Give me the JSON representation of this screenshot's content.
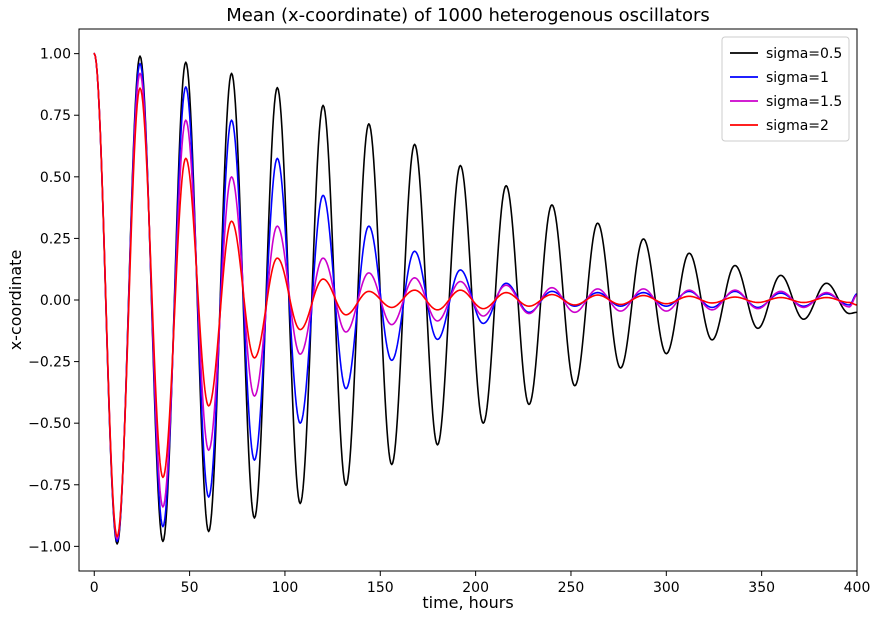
{
  "chart_data": {
    "type": "line",
    "title": "Mean (x-coordinate) of 1000 heterogenous oscillators",
    "xlabel": "time, hours",
    "ylabel": "x-coordinate",
    "xlim": [
      -8,
      400
    ],
    "ylim": [
      -1.1,
      1.1
    ],
    "xticks": [
      0,
      50,
      100,
      150,
      200,
      250,
      300,
      350,
      400
    ],
    "xtick_labels": [
      "0",
      "50",
      "100",
      "150",
      "200",
      "250",
      "300",
      "350",
      "400"
    ],
    "yticks": [
      -1.0,
      -0.75,
      -0.5,
      -0.25,
      0.0,
      0.25,
      0.5,
      0.75,
      1.0
    ],
    "ytick_labels": [
      "−1.00",
      "−0.75",
      "−0.50",
      "−0.25",
      "0.00",
      "0.25",
      "0.50",
      "0.75",
      "1.00"
    ],
    "grid": false,
    "legend_position": "top-right",
    "series": [
      {
        "name": "sigma=0.5",
        "color": "#000000",
        "sigma": 0.5,
        "points": [
          [
            0,
            1.0
          ],
          [
            12,
            -0.99
          ],
          [
            24,
            0.99
          ],
          [
            36,
            -0.98
          ],
          [
            48,
            0.965
          ],
          [
            60,
            -0.94
          ],
          [
            72,
            0.92
          ],
          [
            84,
            -0.885
          ],
          [
            96,
            0.862
          ],
          [
            108,
            -0.826
          ],
          [
            120,
            0.79
          ],
          [
            132,
            -0.752
          ],
          [
            144,
            0.715
          ],
          [
            156,
            -0.668
          ],
          [
            168,
            0.632
          ],
          [
            180,
            -0.588
          ],
          [
            192,
            0.546
          ],
          [
            204,
            -0.5
          ],
          [
            216,
            0.464
          ],
          [
            228,
            -0.424
          ],
          [
            240,
            0.386
          ],
          [
            252,
            -0.348
          ],
          [
            264,
            0.312
          ],
          [
            276,
            -0.276
          ],
          [
            288,
            0.248
          ],
          [
            300,
            -0.218
          ],
          [
            312,
            0.19
          ],
          [
            324,
            -0.162
          ],
          [
            336,
            0.14
          ],
          [
            348,
            -0.115
          ],
          [
            360,
            0.1
          ],
          [
            372,
            -0.078
          ],
          [
            384,
            0.068
          ],
          [
            396,
            -0.055
          ],
          [
            400,
            -0.05
          ]
        ]
      },
      {
        "name": "sigma=1",
        "color": "#0000ff",
        "sigma": 1,
        "points": [
          [
            0,
            1.0
          ],
          [
            12,
            -0.98
          ],
          [
            24,
            0.96
          ],
          [
            36,
            -0.92
          ],
          [
            48,
            0.865
          ],
          [
            60,
            -0.8
          ],
          [
            72,
            0.73
          ],
          [
            84,
            -0.65
          ],
          [
            96,
            0.575
          ],
          [
            108,
            -0.5
          ],
          [
            120,
            0.425
          ],
          [
            132,
            -0.36
          ],
          [
            144,
            0.3
          ],
          [
            156,
            -0.245
          ],
          [
            168,
            0.198
          ],
          [
            180,
            -0.16
          ],
          [
            192,
            0.122
          ],
          [
            204,
            -0.095
          ],
          [
            216,
            0.068
          ],
          [
            228,
            -0.05
          ],
          [
            240,
            0.035
          ],
          [
            252,
            -0.025
          ],
          [
            264,
            0.03
          ],
          [
            276,
            -0.025
          ],
          [
            288,
            0.03
          ],
          [
            300,
            -0.025
          ],
          [
            312,
            0.035
          ],
          [
            324,
            -0.03
          ],
          [
            336,
            0.035
          ],
          [
            348,
            -0.03
          ],
          [
            360,
            0.028
          ],
          [
            372,
            -0.025
          ],
          [
            384,
            0.025
          ],
          [
            396,
            -0.02
          ],
          [
            400,
            0.025
          ]
        ]
      },
      {
        "name": "sigma=1.5",
        "color": "#cc00cc",
        "sigma": 1.5,
        "points": [
          [
            0,
            1.0
          ],
          [
            12,
            -0.97
          ],
          [
            24,
            0.92
          ],
          [
            36,
            -0.84
          ],
          [
            48,
            0.73
          ],
          [
            60,
            -0.61
          ],
          [
            72,
            0.5
          ],
          [
            84,
            -0.39
          ],
          [
            96,
            0.3
          ],
          [
            108,
            -0.22
          ],
          [
            120,
            0.17
          ],
          [
            132,
            -0.13
          ],
          [
            144,
            0.11
          ],
          [
            156,
            -0.1
          ],
          [
            168,
            0.09
          ],
          [
            180,
            -0.085
          ],
          [
            192,
            0.075
          ],
          [
            204,
            -0.065
          ],
          [
            216,
            0.06
          ],
          [
            228,
            -0.055
          ],
          [
            240,
            0.05
          ],
          [
            252,
            -0.05
          ],
          [
            264,
            0.045
          ],
          [
            276,
            -0.045
          ],
          [
            288,
            0.045
          ],
          [
            300,
            -0.045
          ],
          [
            312,
            0.04
          ],
          [
            324,
            -0.04
          ],
          [
            336,
            0.04
          ],
          [
            348,
            -0.035
          ],
          [
            360,
            0.035
          ],
          [
            372,
            -0.03
          ],
          [
            384,
            0.03
          ],
          [
            396,
            -0.028
          ],
          [
            400,
            0.02
          ]
        ]
      },
      {
        "name": "sigma=2",
        "color": "#ff0000",
        "sigma": 2,
        "points": [
          [
            0,
            1.0
          ],
          [
            12,
            -0.96
          ],
          [
            24,
            0.86
          ],
          [
            36,
            -0.72
          ],
          [
            48,
            0.575
          ],
          [
            60,
            -0.43
          ],
          [
            72,
            0.32
          ],
          [
            84,
            -0.235
          ],
          [
            96,
            0.17
          ],
          [
            108,
            -0.12
          ],
          [
            120,
            0.085
          ],
          [
            132,
            -0.06
          ],
          [
            144,
            0.035
          ],
          [
            156,
            -0.03
          ],
          [
            168,
            0.04
          ],
          [
            180,
            -0.04
          ],
          [
            192,
            0.04
          ],
          [
            204,
            -0.035
          ],
          [
            216,
            0.03
          ],
          [
            228,
            -0.025
          ],
          [
            240,
            0.022
          ],
          [
            252,
            -0.02
          ],
          [
            264,
            0.02
          ],
          [
            276,
            -0.018
          ],
          [
            288,
            0.018
          ],
          [
            300,
            -0.015
          ],
          [
            312,
            0.015
          ],
          [
            324,
            -0.012
          ],
          [
            336,
            0.012
          ],
          [
            348,
            -0.01
          ],
          [
            360,
            0.01
          ],
          [
            372,
            -0.01
          ],
          [
            384,
            0.01
          ],
          [
            396,
            -0.01
          ],
          [
            400,
            -0.02
          ]
        ]
      }
    ]
  }
}
